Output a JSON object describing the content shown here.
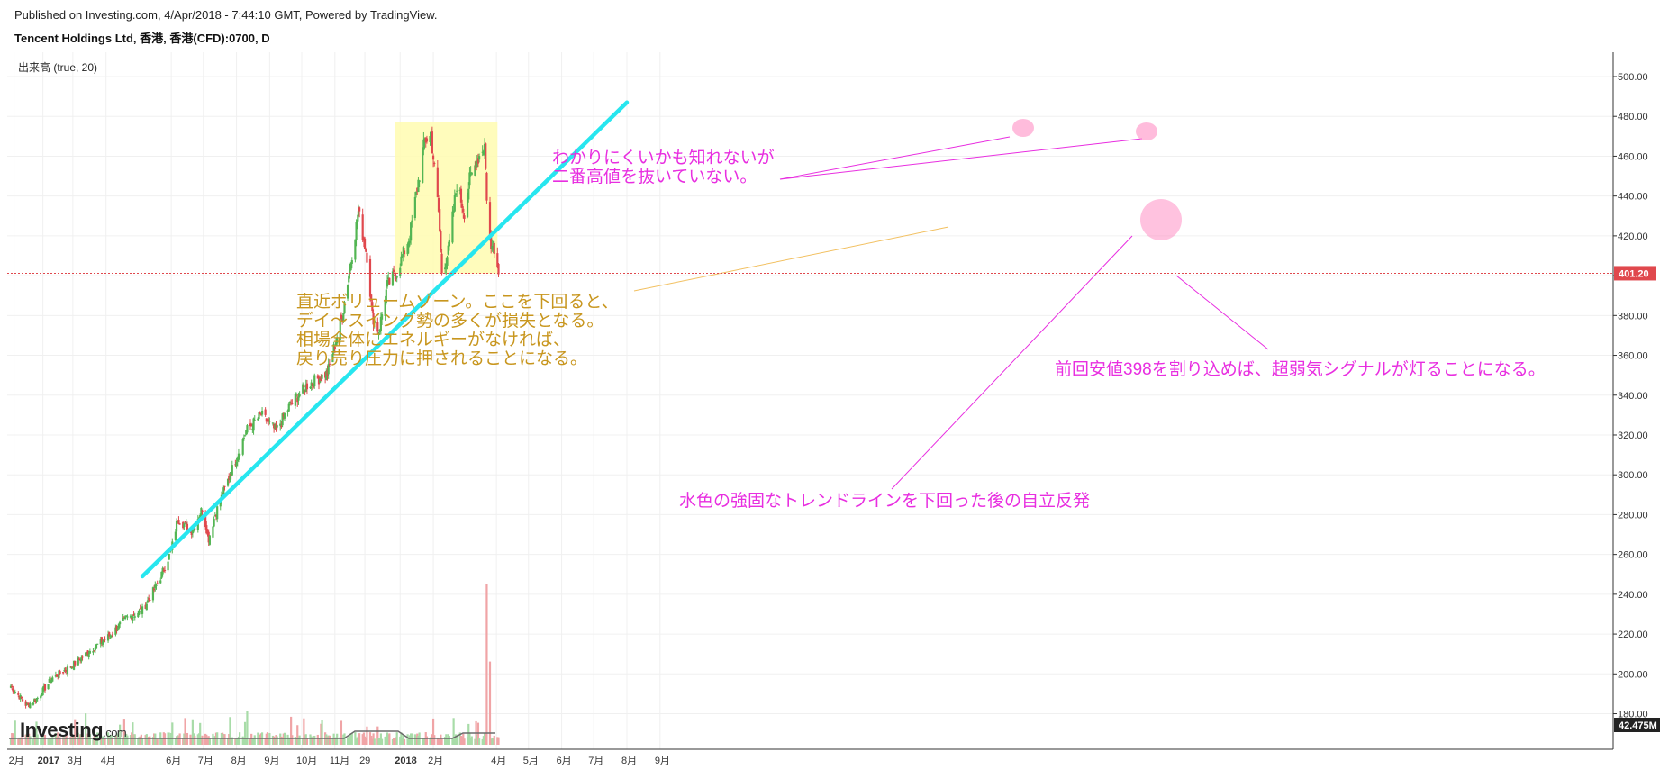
{
  "header": {
    "published": "Published on Investing.com, 4/Apr/2018 - 7:44:10 GMT, Powered by TradingView.",
    "symbol": "Tencent Holdings Ltd, 香港, 香港(CFD):0700, D",
    "volume_indicator": "出来高 (true, 20)"
  },
  "logo": {
    "main": "Investing",
    "suffix": ".com"
  },
  "colors": {
    "up": "#53b553",
    "down": "#e0484d",
    "trendline": "#27e6ef",
    "zone_fill": "#fffbb0",
    "annotation_magenta": "#e82ee0",
    "annotation_gold": "#c8961e",
    "price_line": "#e0484d",
    "vol_ma": "#6b6b6b"
  },
  "annotations": {
    "peak_note": [
      "わかりにくいかも知れないが",
      "二番高値を抜いていない。"
    ],
    "volume_zone_note": [
      "直近ボリュームゾーン。ここを下回ると、",
      "デイ～スイング勢の多くが損失となる。",
      "相場全体にエネルギーがなければ、",
      "戻り売り圧力に押されることになる。"
    ],
    "signal_note": "前回安値398を割り込めば、超弱気シグナルが灯ることになる。",
    "trendline_note": "水色の強固なトレンドラインを下回った後の自立反発"
  },
  "chart_data": {
    "type": "candlestick",
    "yaxis_ticks": [
      "500.00",
      "480.00",
      "460.00",
      "440.00",
      "420.00",
      "400.00",
      "380.00",
      "360.00",
      "340.00",
      "320.00",
      "300.00",
      "280.00",
      "260.00",
      "240.00",
      "220.00",
      "200.00",
      "180.00"
    ],
    "ylim": [
      170,
      505
    ],
    "xaxis_ticks": [
      "2月",
      "2017",
      "3月",
      "4月",
      "6月",
      "7月",
      "8月",
      "9月",
      "10月",
      "11月",
      "29",
      "2018",
      "2月",
      "4月",
      "5月",
      "6月",
      "7月",
      "8月",
      "9月"
    ],
    "last_price": "401.20",
    "last_volume": "42.475M",
    "trendline": {
      "from": [
        "2017-05-05",
        249
      ],
      "to": [
        "2018-08-01",
        487
      ]
    },
    "volume_zone": {
      "from": "2017-12-27",
      "to": "2018-04-02",
      "low": 401,
      "high": 477
    },
    "price_anchors": [
      [
        "2017-01-02",
        194
      ],
      [
        "2017-01-17",
        184
      ],
      [
        "2017-01-27",
        188
      ],
      [
        "2017-02-10",
        198
      ],
      [
        "2017-02-28",
        204
      ],
      [
        "2017-03-20",
        213
      ],
      [
        "2017-04-04",
        219
      ],
      [
        "2017-04-20",
        228
      ],
      [
        "2017-05-05",
        232
      ],
      [
        "2017-05-20",
        246
      ],
      [
        "2017-06-01",
        262
      ],
      [
        "2017-06-07",
        278
      ],
      [
        "2017-06-20",
        272
      ],
      [
        "2017-06-30",
        283
      ],
      [
        "2017-07-06",
        268
      ],
      [
        "2017-07-12",
        280
      ],
      [
        "2017-07-26",
        300
      ],
      [
        "2017-08-10",
        322
      ],
      [
        "2017-08-24",
        330
      ],
      [
        "2017-09-07",
        322
      ],
      [
        "2017-09-20",
        335
      ],
      [
        "2017-10-06",
        345
      ],
      [
        "2017-10-25",
        351
      ],
      [
        "2017-11-08",
        380
      ],
      [
        "2017-11-23",
        432
      ],
      [
        "2017-12-01",
        410
      ],
      [
        "2017-12-06",
        380
      ],
      [
        "2017-12-12",
        372
      ],
      [
        "2017-12-20",
        395
      ],
      [
        "2017-12-29",
        402
      ],
      [
        "2018-01-10",
        420
      ],
      [
        "2018-01-24",
        468
      ],
      [
        "2018-01-30",
        470
      ],
      [
        "2018-02-06",
        432
      ],
      [
        "2018-02-09",
        402
      ],
      [
        "2018-02-15",
        412
      ],
      [
        "2018-02-23",
        446
      ],
      [
        "2018-03-02",
        432
      ],
      [
        "2018-03-07",
        448
      ],
      [
        "2018-03-14",
        458
      ],
      [
        "2018-03-21",
        466
      ],
      [
        "2018-03-23",
        440
      ],
      [
        "2018-03-27",
        412
      ],
      [
        "2018-03-29",
        418
      ],
      [
        "2018-04-03",
        401
      ]
    ],
    "volume_spikes": [
      [
        "2018-03-23",
        54
      ],
      [
        "2018-03-26",
        28
      ]
    ]
  }
}
